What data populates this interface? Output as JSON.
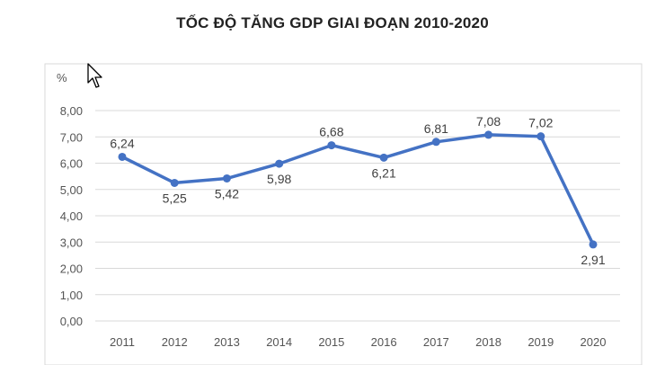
{
  "chart_data": {
    "type": "line",
    "title": "TỐC ĐỘ TĂNG GDP GIAI ĐOẠN 2010-2020",
    "ylabel": "%",
    "xlabel": "",
    "categories": [
      "2011",
      "2012",
      "2013",
      "2014",
      "2015",
      "2016",
      "2017",
      "2018",
      "2019",
      "2020"
    ],
    "series": [
      {
        "values": [
          6.24,
          5.25,
          5.42,
          5.98,
          6.68,
          6.21,
          6.81,
          7.08,
          7.02,
          2.91
        ],
        "labels": [
          "6,24",
          "5,25",
          "5,42",
          "5,98",
          "6,68",
          "6,21",
          "6,81",
          "7,08",
          "7,02",
          "2,91"
        ]
      }
    ],
    "ylim": [
      0,
      8
    ],
    "yticks": [
      "0,00",
      "1,00",
      "2,00",
      "3,00",
      "4,00",
      "5,00",
      "6,00",
      "7,00",
      "8,00"
    ],
    "grid": true,
    "line_color": "#4472c4",
    "label_positions": [
      "above",
      "below",
      "below",
      "below",
      "above",
      "below",
      "above",
      "above",
      "above",
      "below"
    ]
  }
}
